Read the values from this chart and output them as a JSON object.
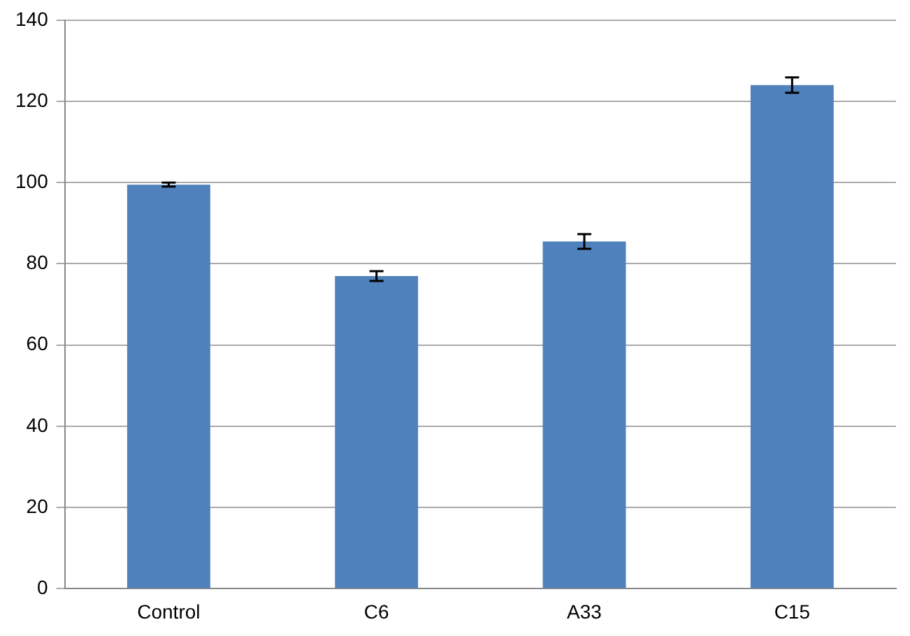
{
  "chart_data": {
    "type": "bar",
    "categories": [
      "Control",
      "C6",
      "A33",
      "C15"
    ],
    "values": [
      99.5,
      77,
      85.5,
      124
    ],
    "errors": [
      0.5,
      1.2,
      1.8,
      1.9
    ],
    "color": "#4f81bd",
    "ylim": [
      0,
      140
    ],
    "yticks": [
      0,
      20,
      40,
      60,
      80,
      100,
      120,
      140
    ],
    "grid": "y",
    "legend": false
  }
}
